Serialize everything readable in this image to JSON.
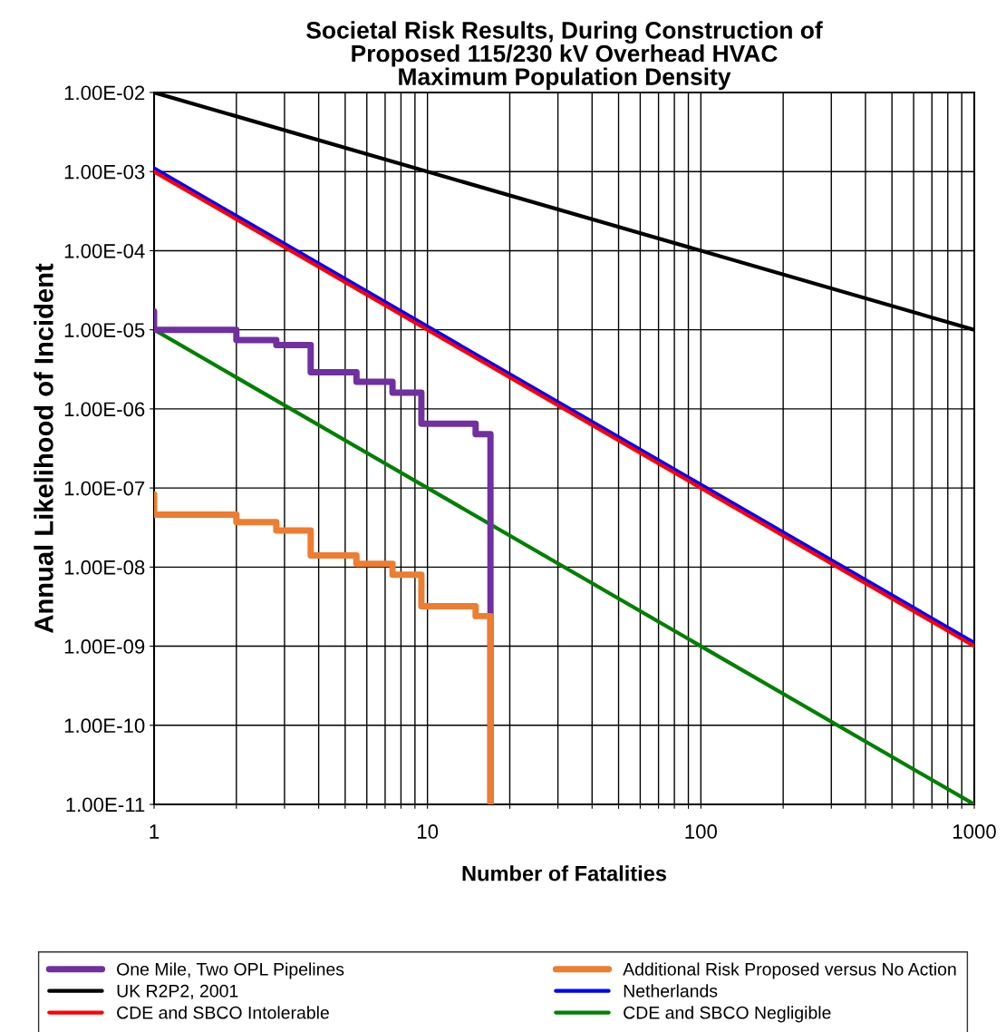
{
  "chart_data": {
    "type": "line",
    "title": "Societal Risk Results, During Construction of\nProposed 115/230 kV Overhead HVAC\nMaximum Population Density",
    "xlabel": "Number of Fatalities",
    "ylabel": "Annual Likelihood of Incident",
    "log": "xy",
    "grid": true,
    "legend": "bottom",
    "marker": "none",
    "line_style": "solid",
    "xlim": [
      1,
      1000
    ],
    "ylim": [
      1e-11,
      0.01
    ],
    "xticks": [
      1,
      {
        "value": 2,
        "label": null
      },
      {
        "value": 3,
        "label": null
      },
      {
        "value": 4,
        "label": null
      },
      {
        "value": 5,
        "label": null
      },
      {
        "value": 6,
        "label": null
      },
      {
        "value": 7,
        "label": null
      },
      {
        "value": 8,
        "label": null
      },
      {
        "value": 9,
        "label": null
      },
      10,
      {
        "value": 20,
        "label": null
      },
      {
        "value": 30,
        "label": null
      },
      {
        "value": 40,
        "label": null
      },
      {
        "value": 50,
        "label": null
      },
      {
        "value": 60,
        "label": null
      },
      {
        "value": 70,
        "label": null
      },
      {
        "value": 80,
        "label": null
      },
      {
        "value": 90,
        "label": null
      },
      100,
      {
        "value": 200,
        "label": null
      },
      {
        "value": 300,
        "label": null
      },
      {
        "value": 400,
        "label": null
      },
      {
        "value": 500,
        "label": null
      },
      {
        "value": 600,
        "label": null
      },
      {
        "value": 700,
        "label": null
      },
      {
        "value": 800,
        "label": null
      },
      {
        "value": 900,
        "label": null
      },
      1000
    ],
    "yticks": [
      {
        "value": 1e-11,
        "label": "1.00E-11"
      },
      {
        "value": 1e-10,
        "label": "1.00E-10"
      },
      {
        "value": 1e-09,
        "label": "1.00E-09"
      },
      {
        "value": 1e-08,
        "label": "1.00E-08"
      },
      {
        "value": 1e-07,
        "label": "1.00E-07"
      },
      {
        "value": 1e-06,
        "label": "1.00E-06"
      },
      {
        "value": 1e-05,
        "label": "1.00E-05"
      },
      {
        "value": 0.0001,
        "label": "1.00E-04"
      },
      {
        "value": 0.001,
        "label": "1.00E-03"
      },
      {
        "value": 0.01,
        "label": "1.00E-02"
      }
    ],
    "series": [
      {
        "name": "One Mile, Two OPL Pipelines",
        "type": "step",
        "color": "#7030a0",
        "x": [
          1,
          1,
          2,
          2.8,
          3.74,
          5.5,
          7.45,
          9.5,
          15,
          17
        ],
        "values": [
          1.7e-05,
          1e-05,
          7.4e-06,
          6.4e-06,
          2.9e-06,
          2.2e-06,
          1.6e-06,
          6.5e-07,
          4.8e-07,
          1e-11
        ]
      },
      {
        "name": "Additional Risk Proposed versus No Action",
        "type": "step",
        "color": "#ed7d31",
        "x": [
          1,
          1,
          2,
          2.8,
          3.74,
          5.5,
          7.45,
          9.5,
          15,
          17
        ],
        "values": [
          8.3e-08,
          4.6e-08,
          3.7e-08,
          2.9e-08,
          1.4e-08,
          1.1e-08,
          8e-09,
          3.2e-09,
          2.4e-09,
          1e-11
        ]
      },
      {
        "name": "UK R2P2, 2001",
        "color": "#000000",
        "x": [
          1,
          1000
        ],
        "values": [
          0.01,
          1e-05
        ]
      },
      {
        "name": "Netherlands",
        "color": "#0000ff",
        "x": [
          1,
          1000
        ],
        "values": [
          0.0011,
          1.1e-09
        ]
      },
      {
        "name": "CDE and SBCO Intolerable",
        "color": "#ff0000",
        "x": [
          1,
          1000
        ],
        "values": [
          0.001,
          1e-09
        ]
      },
      {
        "name": "CDE and SBCO Negligible",
        "color": "#008000",
        "x": [
          1,
          1000
        ],
        "values": [
          1e-05,
          1e-11
        ]
      }
    ]
  }
}
